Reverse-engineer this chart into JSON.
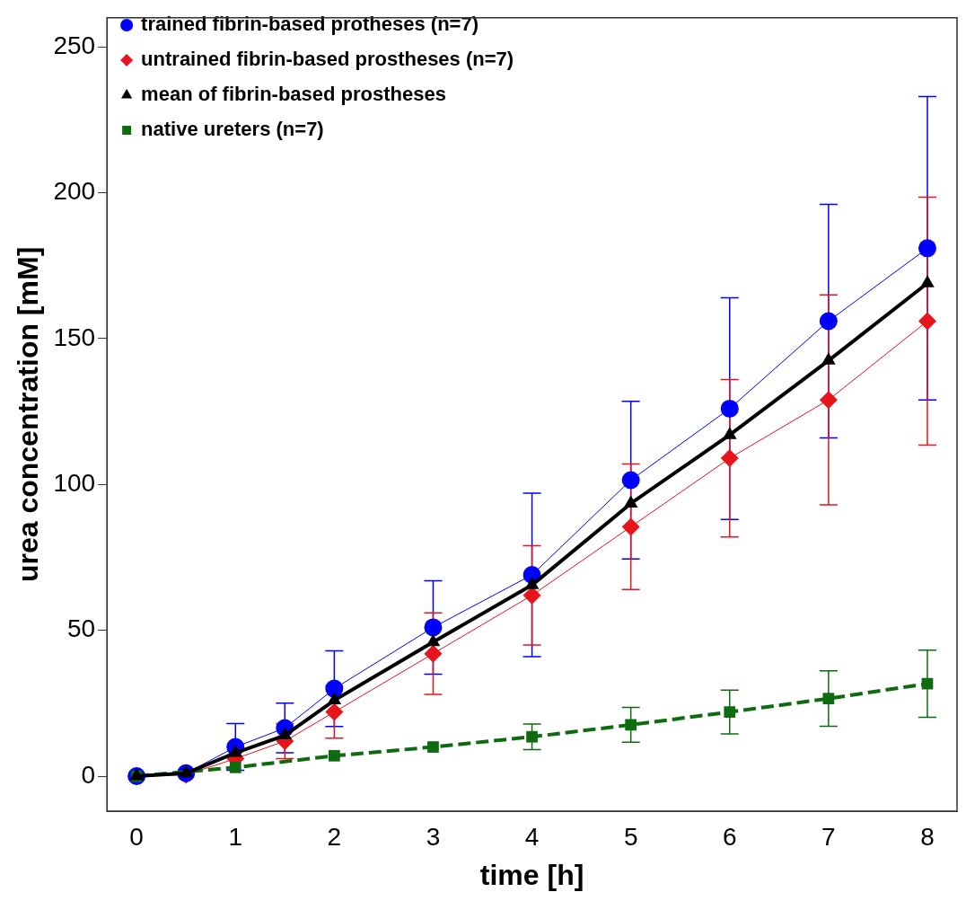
{
  "chart_data": {
    "type": "line",
    "xlabel": "time [h]",
    "ylabel": "urea concentration [mM]",
    "x": [
      0,
      0.5,
      1,
      1.5,
      2,
      3,
      4,
      5,
      6,
      7,
      8
    ],
    "xlim": [
      -0.3,
      8.3
    ],
    "xticks": [
      0,
      1,
      2,
      3,
      4,
      5,
      6,
      7,
      8
    ],
    "ylim": [
      -12,
      260
    ],
    "yticks": [
      0,
      50,
      100,
      150,
      200,
      250
    ],
    "grid": false,
    "legend": "top left",
    "series": [
      {
        "name": "trained fibrin-based protheses (n=7)",
        "color": "#0000ff",
        "marker": "circle",
        "line_style": "solid",
        "values": [
          0,
          1,
          10,
          16.5,
          30,
          51,
          69,
          101.5,
          126,
          156,
          181
        ],
        "errors": [
          null,
          null,
          8,
          8.5,
          13,
          16,
          28,
          27,
          38,
          40,
          52
        ]
      },
      {
        "name": "untrained fibrin-based prostheses (n=7)",
        "color": "#e8141c",
        "marker": "diamond",
        "line_style": "solid",
        "values": [
          0,
          0.5,
          6,
          12,
          22,
          42,
          62,
          85.5,
          109,
          129,
          156
        ],
        "errors": [
          null,
          null,
          null,
          6,
          9,
          14,
          17,
          21.5,
          27,
          36,
          42.5
        ]
      },
      {
        "name": "mean of fibrin-based prostheses",
        "color": "#000000",
        "marker": "triangle",
        "line_style": "solid",
        "values": [
          0,
          1,
          8,
          14,
          26,
          46,
          65.5,
          93.5,
          117,
          142.5,
          169
        ]
      },
      {
        "name": "native ureters (n=7)",
        "color": "#0f6b0f",
        "marker": "square",
        "line_style": "dashed",
        "x": [
          0,
          1,
          2,
          3,
          4,
          5,
          6,
          7,
          8
        ],
        "values": [
          0,
          3,
          7,
          10,
          13.5,
          17.6,
          22,
          26.6,
          31.7
        ],
        "errors": [
          null,
          null,
          null,
          null,
          4.4,
          6,
          7.5,
          9.5,
          11.5
        ]
      }
    ]
  }
}
